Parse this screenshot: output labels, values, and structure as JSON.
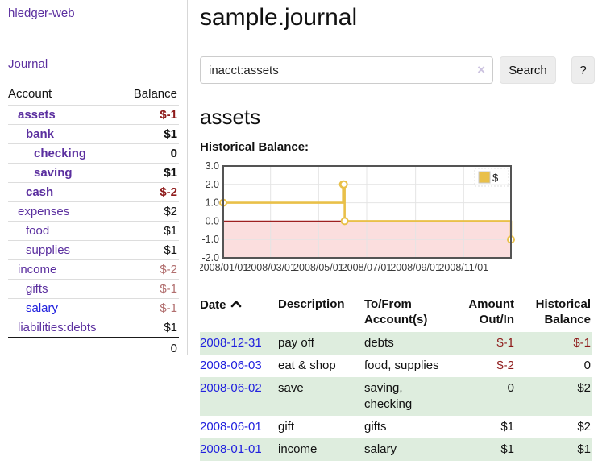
{
  "app": {
    "brand": "hledger-web",
    "nav_journal": "Journal"
  },
  "sidebar": {
    "columns": {
      "account": "Account",
      "balance": "Balance"
    },
    "accounts": [
      {
        "name": "assets",
        "balance": "$-1"
      },
      {
        "name": "bank",
        "balance": "$1"
      },
      {
        "name": "checking",
        "balance": "0"
      },
      {
        "name": "saving",
        "balance": "$1"
      },
      {
        "name": "cash",
        "balance": "$-2"
      },
      {
        "name": "expenses",
        "balance": "$2"
      },
      {
        "name": "food",
        "balance": "$1"
      },
      {
        "name": "supplies",
        "balance": "$1"
      },
      {
        "name": "income",
        "balance": "$-2"
      },
      {
        "name": "gifts",
        "balance": "$-1"
      },
      {
        "name": "salary",
        "balance": "$-1"
      },
      {
        "name": "liabilities:debts",
        "balance": "$1"
      }
    ],
    "total": "0"
  },
  "header": {
    "title": "sample.journal"
  },
  "search": {
    "value": "inacct:assets",
    "clear_label": "×",
    "submit_label": "Search",
    "help_label": "?"
  },
  "account_page": {
    "heading": "assets",
    "chart_title": "Historical Balance:"
  },
  "chart_data": {
    "type": "line",
    "step": true,
    "title": "Historical Balance:",
    "legend": {
      "position": "top-right",
      "entries": [
        {
          "label": "$",
          "color": "#E9C049"
        }
      ]
    },
    "xlim": [
      "2008-01-01",
      "2008-12-31"
    ],
    "ylim": [
      -2,
      3
    ],
    "x": [
      "2008-01-01",
      "2008-06-01",
      "2008-06-02",
      "2008-06-03",
      "2008-12-31"
    ],
    "series": [
      {
        "name": "$",
        "color": "#E9C049",
        "values": [
          1,
          2,
          2,
          0,
          -1
        ]
      }
    ],
    "yticks": [
      {
        "v": 3,
        "label": "3.0"
      },
      {
        "v": 2,
        "label": "2.0"
      },
      {
        "v": 1,
        "label": "1.0"
      },
      {
        "v": 0,
        "label": "0.0"
      },
      {
        "v": -1,
        "label": "-1.0"
      },
      {
        "v": -2,
        "label": "-2.0"
      }
    ],
    "xticks": [
      {
        "date": "2008-01-01",
        "label": "2008/01/01"
      },
      {
        "date": "2008-03-01",
        "label": "2008/03/01"
      },
      {
        "date": "2008-05-01",
        "label": "2008/05/01"
      },
      {
        "date": "2008-07-01",
        "label": "2008/07/01"
      },
      {
        "date": "2008-09-01",
        "label": "2008/09/01"
      },
      {
        "date": "2008-11-01",
        "label": "2008/11/01"
      }
    ],
    "grid": true,
    "negative_area_color": "#FBDEDE",
    "zero_line_color": "#9E2020",
    "border_color": "#545454"
  },
  "register": {
    "headers": {
      "date": "Date",
      "description": "Description",
      "accounts": "To/From Account(s)",
      "amount": "Amount Out/In",
      "balance": "Historical Balance"
    },
    "rows": [
      {
        "date": "2008-12-31",
        "description": "pay off",
        "accounts": "debts",
        "amount": "$-1",
        "balance": "$-1"
      },
      {
        "date": "2008-06-03",
        "description": "eat & shop",
        "accounts": "food, supplies",
        "amount": "$-2",
        "balance": "0"
      },
      {
        "date": "2008-06-02",
        "description": "save",
        "accounts": "saving, checking",
        "amount": "0",
        "balance": "$2"
      },
      {
        "date": "2008-06-01",
        "description": "gift",
        "accounts": "gifts",
        "amount": "$1",
        "balance": "$2"
      },
      {
        "date": "2008-01-01",
        "description": "income",
        "accounts": "salary",
        "amount": "$1",
        "balance": "$1"
      }
    ]
  },
  "colors": {
    "link_purple": "#5B2F9F",
    "link_blue": "#2121DE",
    "negative_strong": "#8E1A1A",
    "negative_muted": "#B16E6E",
    "row_green": "#DEEDDE",
    "chart_gold": "#E9C049"
  }
}
